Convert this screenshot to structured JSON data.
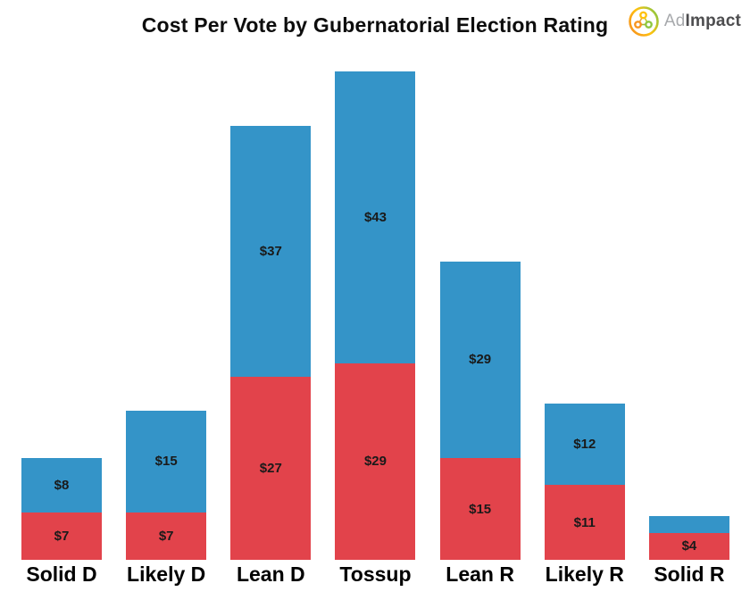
{
  "header": {
    "title": "Cost Per Vote by Gubernatorial Election Rating",
    "logo": {
      "text_light": "Ad",
      "text_bold": "Impact",
      "text_light_color": "#A7A9AC",
      "text_bold_color": "#4D4D4F",
      "mark_orange": "#F7941E",
      "mark_yellow": "#FFC20E",
      "mark_green": "#8DC63F"
    }
  },
  "chart_data": {
    "type": "bar",
    "stacked": true,
    "title": "Cost Per Vote by Gubernatorial Election Rating",
    "categories": [
      "Solid D",
      "Likely D",
      "Lean D",
      "Tossup",
      "Lean R",
      "Likely R",
      "Solid R"
    ],
    "series": [
      {
        "name": "bottom-red-segment",
        "color": "#E2434B",
        "values": [
          7,
          7,
          27,
          29,
          15,
          11,
          4
        ],
        "labels": [
          "$7",
          "$7",
          "$27",
          "$29",
          "$15",
          "$11",
          "$4"
        ]
      },
      {
        "name": "top-blue-segment",
        "color": "#3494C8",
        "values": [
          8,
          15,
          37,
          43,
          29,
          12,
          2.5
        ],
        "labels": [
          "$8",
          "$15",
          "$37",
          "$43",
          "$29",
          "$12",
          ""
        ]
      }
    ],
    "totals": [
      15,
      22,
      64,
      72,
      44,
      23,
      6.5
    ],
    "ylim": [
      0,
      72
    ],
    "xlabel": "",
    "ylabel": "",
    "axes_visible": false,
    "grid": false,
    "legend": "none",
    "value_labels_position": "inside-center",
    "value_label_color": "#1a1a1a",
    "category_label_color": "#000000",
    "background": "#ffffff"
  }
}
